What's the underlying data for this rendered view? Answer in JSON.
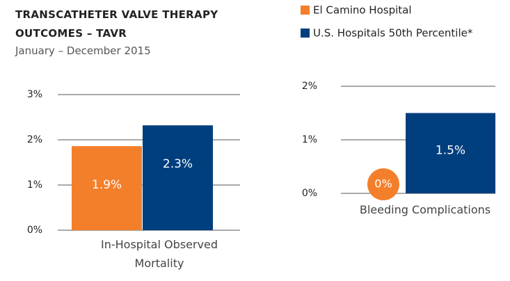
{
  "chart_data": [
    {
      "type": "bar",
      "title": "TRANSCATHETER VALVE THERAPY OUTCOMES – TAVR",
      "subtitle": "January – December 2015",
      "categories": [
        "In-Hospital Observed Mortality"
      ],
      "series": [
        {
          "name": "El Camino Hospital",
          "color": "#f47f2b",
          "values": [
            1.86
          ],
          "value_labels": [
            "1.9%"
          ]
        },
        {
          "name": "U.S. Hospitals 50th Percentile*",
          "color": "#003f7d",
          "values": [
            2.32
          ],
          "value_labels": [
            "2.3%"
          ]
        }
      ],
      "ylim": [
        0,
        3
      ],
      "yticks": [
        {
          "value": 0,
          "label": "0%"
        },
        {
          "value": 1,
          "label": "1%"
        },
        {
          "value": 2,
          "label": "2%"
        },
        {
          "value": 3,
          "label": "3%"
        }
      ],
      "grid": true
    },
    {
      "type": "bar",
      "categories": [
        "Bleeding Complications"
      ],
      "series": [
        {
          "color": "#f47f2b",
          "values": [
            0
          ],
          "value_labels": [
            "0%"
          ]
        },
        {
          "color": "#003f7d",
          "values": [
            1.5
          ],
          "value_labels": [
            "1.5%"
          ]
        }
      ],
      "ylim": [
        0,
        2
      ],
      "yticks": [
        {
          "value": 0,
          "label": "0%"
        },
        {
          "value": 1,
          "label": "1%"
        },
        {
          "value": 2,
          "label": "2%"
        }
      ],
      "grid": true
    }
  ]
}
